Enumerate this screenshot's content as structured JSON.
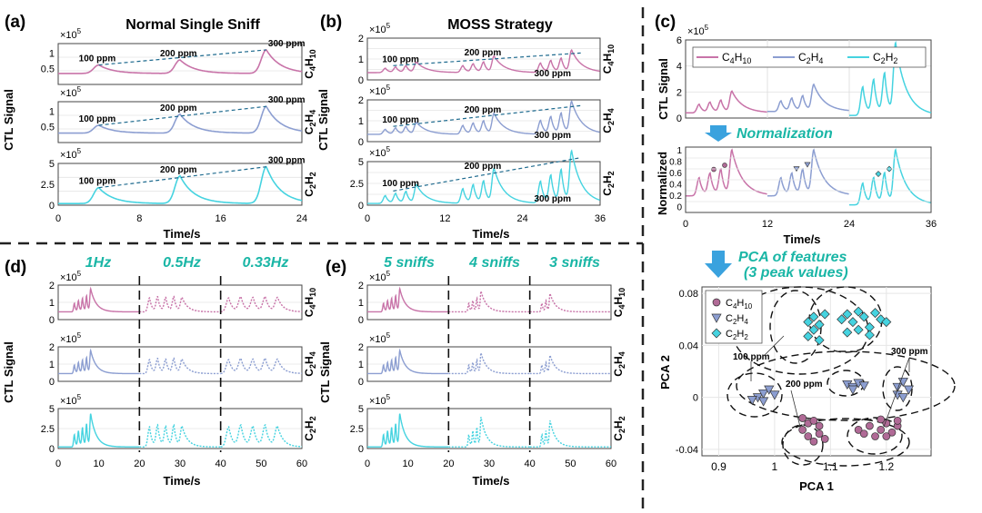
{
  "colors": {
    "c4h10": "#c873a8",
    "c2h4": "#8c9ed1",
    "c2h2": "#45d3e0",
    "teal_text": "#1ab6a6",
    "arrow": "#3aa2de",
    "trend": "#1f6b8f",
    "axis": "#333333"
  },
  "panel_labels": {
    "a": "(a)",
    "b": "(b)",
    "c": "(c)",
    "d": "(d)",
    "e": "(e)"
  },
  "titles": {
    "a": "Normal Single Sniff",
    "b": "MOSS Strategy",
    "normalization": "Normalization",
    "pca_line1": "PCA of features",
    "pca_line2": "(3 peak values)"
  },
  "rate_labels": [
    "1Hz",
    "0.5Hz",
    "0.33Hz"
  ],
  "sniff_labels": [
    "5 sniffs",
    "4 sniffs",
    "3 sniffs"
  ],
  "common": {
    "exp_label": "×10",
    "exp_power": "5",
    "ylabel": "CTL Signal",
    "xlabel": "Time/s",
    "norm_ylabel": "Normalized",
    "gas_labels": {
      "c4h10": {
        "a": "C",
        "b": "4",
        "c": "H",
        "d": "10"
      },
      "c2h4": {
        "a": "C",
        "b": "2",
        "c": "H",
        "d": "4"
      },
      "c2h2": {
        "a": "C",
        "b": "2",
        "c": "H",
        "d": "2"
      }
    },
    "conc_labels": [
      "100 ppm",
      "200 ppm",
      "300 ppm"
    ]
  },
  "chart_data": [
    {
      "id": "a",
      "type": "line",
      "title": "Normal Single Sniff",
      "xlabel": "Time/s",
      "ylabel": "CTL Signal",
      "xlim": [
        0,
        24
      ],
      "xticks": [
        0,
        8,
        16,
        24
      ],
      "subplots": [
        {
          "gas": "C4H10",
          "ylim": [
            0,
            1.3
          ],
          "yticks": [
            "0.5",
            "1"
          ],
          "exponent": "×10^5",
          "series": [
            {
              "peaks_t": [
                4,
                12,
                20.5
              ],
              "peaks_v": [
                0.62,
                0.78,
                1.1
              ],
              "base": 0.35
            }
          ],
          "annotations": [
            "100 ppm",
            "200 ppm",
            "300 ppm"
          ]
        },
        {
          "gas": "C2H4",
          "ylim": [
            0,
            1.3
          ],
          "yticks": [
            "0.5",
            "1"
          ],
          "exponent": "×10^5",
          "series": [
            {
              "peaks_t": [
                4,
                12,
                20.5
              ],
              "peaks_v": [
                0.55,
                0.9,
                1.15
              ],
              "base": 0.3
            }
          ],
          "annotations": [
            "100 ppm",
            "200 ppm",
            "300 ppm"
          ]
        },
        {
          "gas": "C2H2",
          "ylim": [
            0,
            5
          ],
          "yticks": [
            "0",
            "2.5",
            "5"
          ],
          "exponent": "×10^5",
          "series": [
            {
              "peaks_t": [
                4,
                12,
                20.5
              ],
              "peaks_v": [
                2.1,
                3.5,
                4.6
              ],
              "base": 0.2
            }
          ],
          "annotations": [
            "100 ppm",
            "200 ppm",
            "300 ppm"
          ]
        }
      ]
    },
    {
      "id": "b",
      "type": "line",
      "title": "MOSS Strategy",
      "xlabel": "Time/s",
      "ylabel": "CTL Signal",
      "xlim": [
        0,
        36
      ],
      "xticks": [
        0,
        12,
        24,
        36
      ],
      "subplots": [
        {
          "gas": "C4H10",
          "ylim": [
            0,
            2
          ],
          "yticks": [
            "0",
            "1",
            "2"
          ],
          "exponent": "×10^5",
          "annotations": [
            "100 ppm",
            "200 ppm",
            "300 ppm"
          ]
        },
        {
          "gas": "C2H4",
          "ylim": [
            0,
            2
          ],
          "yticks": [
            "0",
            "1",
            "2"
          ],
          "exponent": "×10^5",
          "annotations": [
            "100 ppm",
            "200 ppm",
            "300 ppm"
          ]
        },
        {
          "gas": "C2H2",
          "ylim": [
            0,
            5
          ],
          "yticks": [
            "0",
            "2.5",
            "5"
          ],
          "exponent": "×10^5",
          "annotations": [
            "100 ppm",
            "200 ppm",
            "300 ppm"
          ]
        }
      ]
    },
    {
      "id": "c",
      "type": "line",
      "xlabel": "Time/s",
      "xlim": [
        0,
        36
      ],
      "xticks": [
        0,
        12,
        24,
        36
      ],
      "top": {
        "ylabel": "CTL Signal",
        "yticks": [
          "0",
          "2",
          "4",
          "6"
        ],
        "exponent": "×10^5",
        "legend": [
          "C4H10",
          "C2H4",
          "C2H2"
        ]
      },
      "bottom": {
        "ylabel": "Normalized",
        "yticks": [
          "0",
          "0.2",
          "0.4",
          "0.6",
          "0.8",
          "1"
        ]
      }
    },
    {
      "id": "pca",
      "type": "scatter",
      "xlabel": "PCA 1",
      "ylabel": "PCA 2",
      "xlim": [
        0.87,
        1.28
      ],
      "ylim": [
        -0.045,
        0.085
      ],
      "xticks": [
        "0.9",
        "1",
        "1.1",
        "1.2"
      ],
      "yticks": [
        "-0.04",
        "0",
        "0.04",
        "0.08"
      ],
      "legend": [
        "C4H10",
        "C2H4",
        "C2H2"
      ],
      "series": [
        {
          "name": "C4H10",
          "points": [
            [
              1.05,
              -0.025
            ],
            [
              1.06,
              -0.03
            ],
            [
              1.07,
              -0.034
            ],
            [
              1.08,
              -0.028
            ],
            [
              1.06,
              -0.02
            ],
            [
              1.08,
              -0.022
            ],
            [
              1.09,
              -0.032
            ],
            [
              1.07,
              -0.018
            ],
            [
              1.05,
              -0.016
            ],
            [
              1.15,
              -0.025
            ],
            [
              1.16,
              -0.028
            ],
            [
              1.17,
              -0.022
            ],
            [
              1.18,
              -0.03
            ],
            [
              1.19,
              -0.025
            ],
            [
              1.2,
              -0.02
            ],
            [
              1.21,
              -0.027
            ],
            [
              1.22,
              -0.022
            ],
            [
              1.2,
              -0.03
            ],
            [
              1.19,
              -0.017
            ],
            [
              1.22,
              -0.018
            ]
          ]
        },
        {
          "name": "C2H4",
          "points": [
            [
              0.97,
              0.0
            ],
            [
              0.98,
              0.003
            ],
            [
              0.96,
              -0.002
            ],
            [
              0.99,
              0.006
            ],
            [
              1.0,
              0.002
            ],
            [
              0.98,
              -0.003
            ],
            [
              1.13,
              0.01
            ],
            [
              1.14,
              0.008
            ],
            [
              1.15,
              0.011
            ],
            [
              1.14,
              0.006
            ],
            [
              1.16,
              0.009
            ],
            [
              1.22,
              0.008
            ],
            [
              1.23,
              0.012
            ],
            [
              1.22,
              0.002
            ],
            [
              1.24,
              0.006
            ],
            [
              1.23,
              0.0
            ]
          ]
        },
        {
          "name": "C2H2",
          "points": [
            [
              1.06,
              0.058
            ],
            [
              1.07,
              0.062
            ],
            [
              1.08,
              0.056
            ],
            [
              1.07,
              0.052
            ],
            [
              1.09,
              0.064
            ],
            [
              1.06,
              0.047
            ],
            [
              1.08,
              0.044
            ],
            [
              1.12,
              0.06
            ],
            [
              1.13,
              0.064
            ],
            [
              1.14,
              0.058
            ],
            [
              1.15,
              0.066
            ],
            [
              1.16,
              0.062
            ],
            [
              1.17,
              0.054
            ],
            [
              1.15,
              0.052
            ],
            [
              1.13,
              0.05
            ],
            [
              1.18,
              0.065
            ],
            [
              1.19,
              0.06
            ],
            [
              1.17,
              0.048
            ],
            [
              1.2,
              0.058
            ]
          ]
        }
      ],
      "annotations": [
        "100 ppm",
        "200 ppm",
        "300 ppm"
      ]
    },
    {
      "id": "d",
      "type": "line",
      "xlabel": "Time/s",
      "ylabel": "CTL Signal",
      "xlim": [
        0,
        60
      ],
      "xticks": [
        0,
        10,
        20,
        30,
        40,
        50,
        60
      ],
      "segments": [
        "1Hz",
        "0.5Hz",
        "0.33Hz"
      ]
    },
    {
      "id": "e",
      "type": "line",
      "xlabel": "Time/s",
      "ylabel": "CTL Signal",
      "xlim": [
        0,
        60
      ],
      "xticks": [
        0,
        10,
        20,
        30,
        40,
        50,
        60
      ],
      "segments": [
        "5 sniffs",
        "4 sniffs",
        "3 sniffs"
      ]
    }
  ]
}
